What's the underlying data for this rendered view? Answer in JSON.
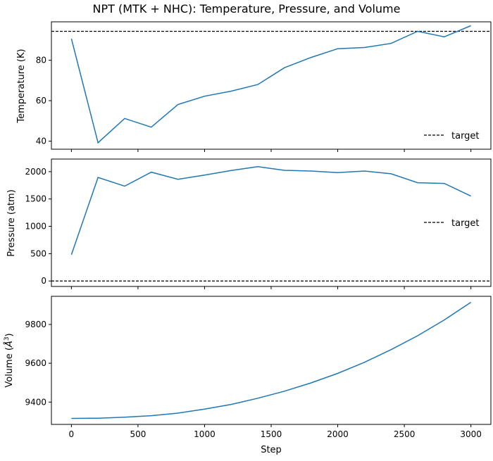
{
  "chart_data": [
    {
      "type": "line",
      "title": "NPT (MTK + NHC): Temperature, Pressure, and Volume",
      "ylabel": "Temperature (K)",
      "ylim": [
        36,
        99
      ],
      "yticks": [
        40,
        60,
        80
      ],
      "x": [
        0,
        200,
        400,
        600,
        800,
        1000,
        1200,
        1400,
        1600,
        1800,
        2000,
        2200,
        2400,
        2600,
        2800,
        3000
      ],
      "series": [
        {
          "values": [
            90.6,
            39.2,
            51.2,
            46.9,
            58.1,
            62.2,
            64.7,
            68.0,
            76.3,
            81.4,
            85.7,
            86.3,
            88.3,
            94.3,
            91.6,
            97.1
          ],
          "color": "#1f77b4"
        }
      ],
      "reference_line": {
        "label": "target",
        "value": 94.3,
        "style": "dashed",
        "color": "#000000"
      },
      "legend": "lower-right"
    },
    {
      "type": "line",
      "ylabel": "Pressure (atm)",
      "ylim": [
        -100,
        2230
      ],
      "yticks": [
        0,
        500,
        1000,
        1500,
        2000
      ],
      "x": [
        0,
        200,
        400,
        600,
        800,
        1000,
        1200,
        1400,
        1600,
        1800,
        2000,
        2200,
        2400,
        2600,
        2800,
        3000
      ],
      "series": [
        {
          "values": [
            480,
            1894,
            1734,
            1990,
            1860,
            1936,
            2020,
            2091,
            2024,
            2011,
            1982,
            2011,
            1961,
            1797,
            1784,
            1553
          ],
          "color": "#1f77b4"
        }
      ],
      "reference_line": {
        "label": "target",
        "value": 0,
        "style": "dashed",
        "color": "#000000"
      },
      "legend": "center-right"
    },
    {
      "type": "line",
      "ylabel": "Volume (Å³)",
      "ylabel_base": "Volume (",
      "ylabel_unit": "Å",
      "ylabel_exp": "3",
      "ylabel_close": ")",
      "xlabel": "Step",
      "xlim": [
        -150,
        3150
      ],
      "xticks": [
        0,
        500,
        1000,
        1500,
        2000,
        2500,
        3000
      ],
      "ylim": [
        9285,
        9945
      ],
      "yticks": [
        9400,
        9600,
        9800
      ],
      "x": [
        0,
        200,
        400,
        600,
        800,
        1000,
        1200,
        1400,
        1600,
        1800,
        2000,
        2200,
        2400,
        2600,
        2800,
        3000
      ],
      "series": [
        {
          "values": [
            9316,
            9317,
            9322,
            9330,
            9343,
            9364,
            9388,
            9420,
            9456,
            9499,
            9548,
            9605,
            9670,
            9742,
            9823,
            9914
          ],
          "color": "#1f77b4"
        }
      ]
    }
  ]
}
